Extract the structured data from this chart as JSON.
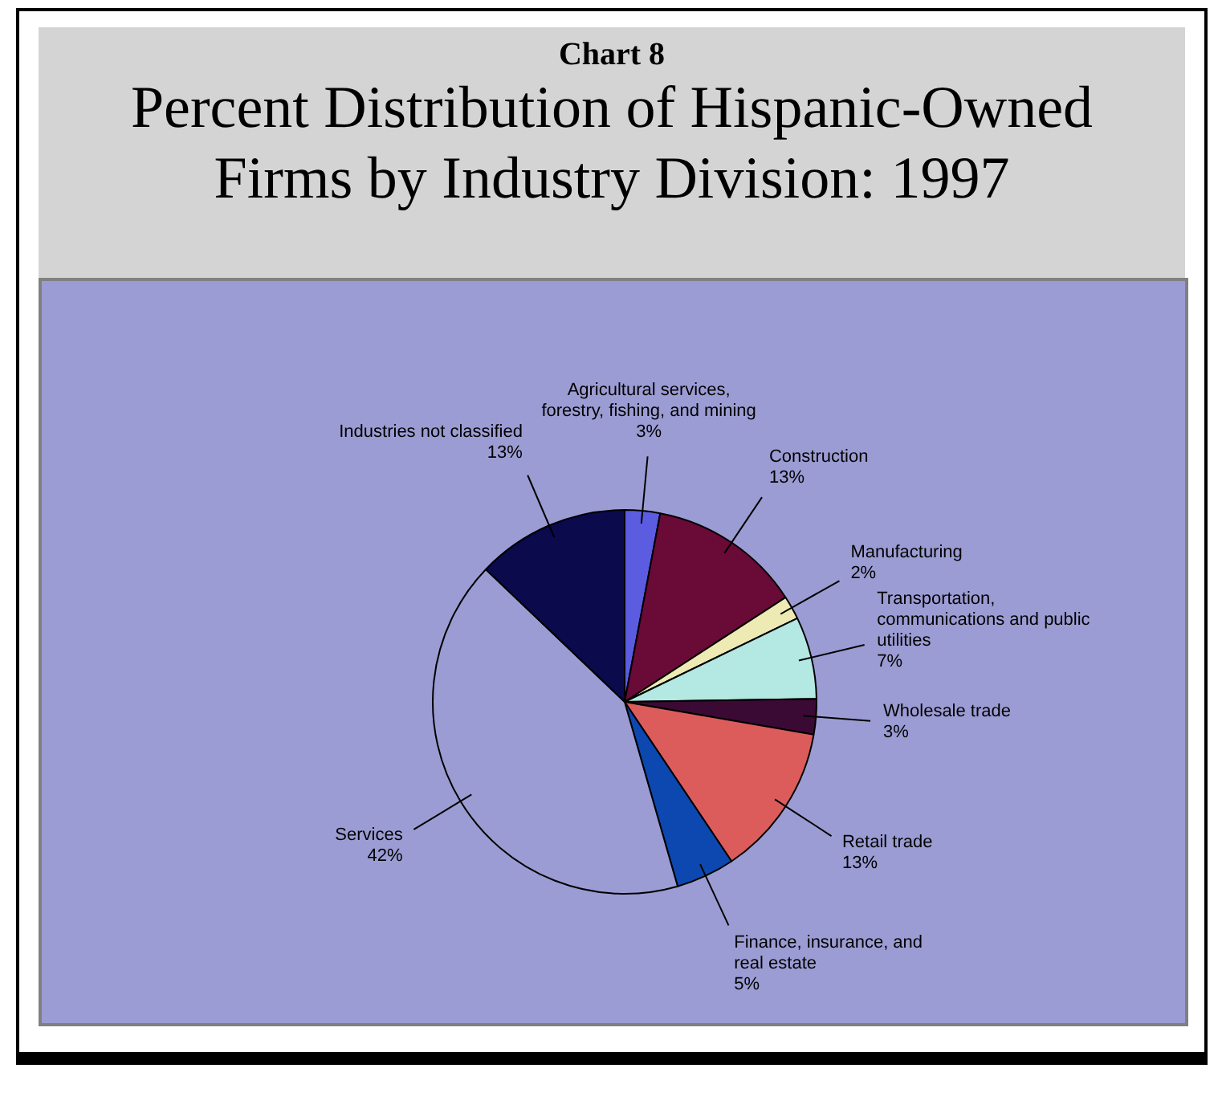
{
  "chart_data": {
    "type": "pie",
    "title": "Percent Distribution of Hispanic-Owned Firms by Industry Division:  1997",
    "annotations": [
      "Chart 8"
    ],
    "categories": [
      "Agricultural services, forestry, fishing, and mining",
      "Construction",
      "Manufacturing",
      "Transportation, communications and public utilities",
      "Wholesale trade",
      "Retail trade",
      "Finance, insurance, and real estate",
      "Services",
      "Industries not classified"
    ],
    "values": [
      3,
      13,
      2,
      7,
      3,
      13,
      5,
      42,
      13
    ],
    "value_labels": [
      "3%",
      "13%",
      "2%",
      "7%",
      "3%",
      "13%",
      "5%",
      "42%",
      "13%"
    ],
    "colors": [
      "#5c5ce0",
      "#6a0a36",
      "#eeeab4",
      "#b4e8e2",
      "#3a0a34",
      "#dc5c5c",
      "#0c48b0",
      "#9c9cd4",
      "#0a0a4c"
    ],
    "legend": false
  }
}
